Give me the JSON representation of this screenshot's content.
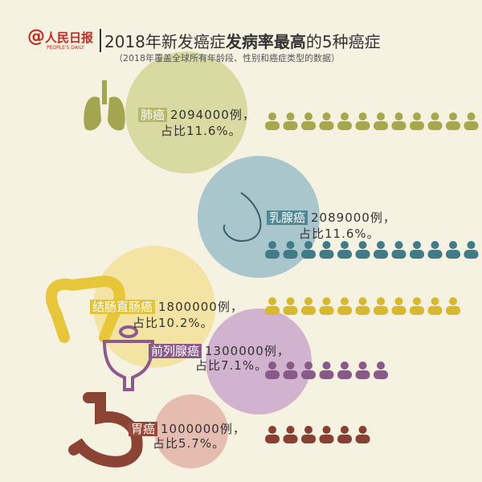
{
  "header": {
    "logo": "人民日报",
    "logo_sub": "PEOPLE'S DAILY",
    "title_parts": [
      "2018年新发癌症",
      "发病率最高",
      "的5种癌症"
    ],
    "subtitle": "（2018年覆盖全球所有年龄段、性别和癌症类型的数据）"
  },
  "items": [
    {
      "name": "肺癌",
      "count": "2094000例，",
      "share": "占比11.6%。"
    },
    {
      "name": "乳腺癌",
      "count": "2089000例，",
      "share": "占比11.6%。"
    },
    {
      "name": "结肠直肠癌",
      "count": "1800000例，",
      "share": "占比10.2%。"
    },
    {
      "name": "前列腺癌",
      "count": "1300000例，",
      "share": "占比7.1%。"
    },
    {
      "name": "胃癌",
      "count": "1000000例，",
      "share": "占比5.7%。"
    }
  ]
}
